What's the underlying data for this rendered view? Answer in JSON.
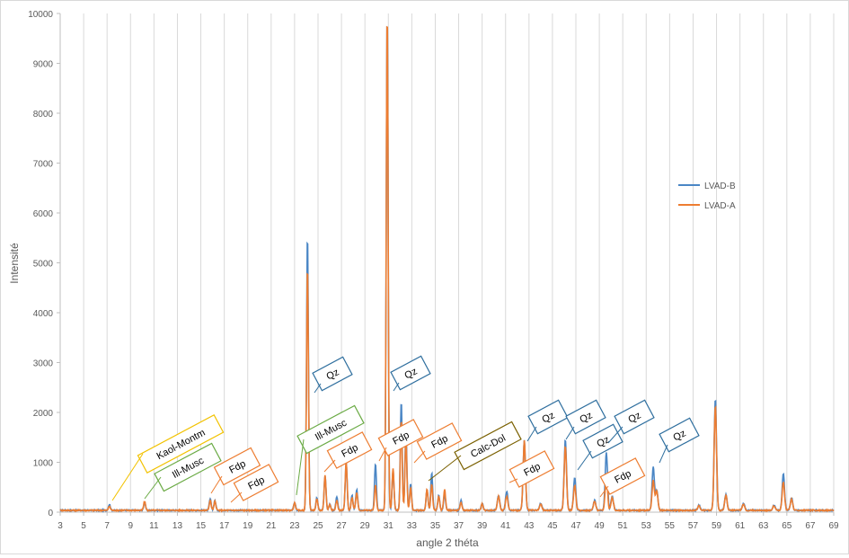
{
  "chart_data": {
    "type": "line",
    "title": "",
    "xlabel": "angle 2 théta",
    "ylabel": "Intensité",
    "xlim": [
      3,
      69
    ],
    "ylim": [
      0,
      10000
    ],
    "x_ticks": [
      3,
      5,
      7,
      9,
      11,
      13,
      15,
      17,
      19,
      21,
      23,
      25,
      27,
      29,
      31,
      33,
      35,
      37,
      39,
      41,
      43,
      45,
      47,
      49,
      51,
      53,
      55,
      57,
      59,
      61,
      63,
      65,
      67,
      69
    ],
    "y_ticks": [
      0,
      1000,
      2000,
      3000,
      4000,
      5000,
      6000,
      7000,
      8000,
      9000,
      10000
    ],
    "grid": "vertical",
    "legend_position": "right",
    "series": [
      {
        "name": "LVAD-B",
        "color": "#4a86c5",
        "peaks": [
          [
            7.2,
            120
          ],
          [
            10.2,
            150
          ],
          [
            15.8,
            230
          ],
          [
            16.2,
            200
          ],
          [
            23.0,
            150
          ],
          [
            24.1,
            5520
          ],
          [
            24.9,
            250
          ],
          [
            25.6,
            700
          ],
          [
            26.0,
            120
          ],
          [
            26.6,
            280
          ],
          [
            27.4,
            960
          ],
          [
            27.9,
            300
          ],
          [
            28.3,
            420
          ],
          [
            29.9,
            930
          ],
          [
            30.9,
            10000
          ],
          [
            31.4,
            800
          ],
          [
            32.1,
            2170
          ],
          [
            32.5,
            1650
          ],
          [
            32.9,
            520
          ],
          [
            34.3,
            420
          ],
          [
            34.7,
            750
          ],
          [
            35.3,
            300
          ],
          [
            35.8,
            330
          ],
          [
            37.2,
            200
          ],
          [
            39.0,
            140
          ],
          [
            40.4,
            300
          ],
          [
            41.1,
            380
          ],
          [
            42.6,
            1400
          ],
          [
            44.0,
            140
          ],
          [
            46.1,
            1420
          ],
          [
            46.9,
            650
          ],
          [
            48.6,
            200
          ],
          [
            49.6,
            1160
          ],
          [
            50.1,
            280
          ],
          [
            53.6,
            870
          ],
          [
            53.9,
            400
          ],
          [
            57.5,
            100
          ],
          [
            58.9,
            2230
          ],
          [
            59.8,
            320
          ],
          [
            61.3,
            140
          ],
          [
            63.9,
            100
          ],
          [
            64.7,
            730
          ],
          [
            65.4,
            250
          ]
        ]
      },
      {
        "name": "LVAD-A",
        "color": "#ed7d31",
        "peaks": [
          [
            7.2,
            80
          ],
          [
            10.2,
            180
          ],
          [
            15.8,
            200
          ],
          [
            16.2,
            180
          ],
          [
            23.0,
            150
          ],
          [
            24.1,
            4880
          ],
          [
            24.9,
            220
          ],
          [
            25.6,
            700
          ],
          [
            26.0,
            120
          ],
          [
            26.6,
            200
          ],
          [
            27.4,
            980
          ],
          [
            27.9,
            260
          ],
          [
            28.3,
            360
          ],
          [
            29.9,
            500
          ],
          [
            30.9,
            10000
          ],
          [
            31.4,
            850
          ],
          [
            32.1,
            1800
          ],
          [
            32.5,
            1450
          ],
          [
            32.9,
            450
          ],
          [
            34.3,
            430
          ],
          [
            34.7,
            520
          ],
          [
            35.3,
            280
          ],
          [
            35.8,
            420
          ],
          [
            37.2,
            160
          ],
          [
            39.0,
            130
          ],
          [
            40.4,
            280
          ],
          [
            41.1,
            280
          ],
          [
            42.6,
            1390
          ],
          [
            44.0,
            120
          ],
          [
            46.1,
            1290
          ],
          [
            46.9,
            500
          ],
          [
            48.6,
            180
          ],
          [
            49.6,
            700
          ],
          [
            50.1,
            260
          ],
          [
            53.6,
            600
          ],
          [
            53.9,
            380
          ],
          [
            57.5,
            90
          ],
          [
            58.9,
            2100
          ],
          [
            59.8,
            300
          ],
          [
            61.3,
            120
          ],
          [
            63.9,
            90
          ],
          [
            64.7,
            560
          ],
          [
            65.4,
            230
          ]
        ]
      }
    ],
    "annotations": [
      {
        "text": "Kaol-Montm",
        "color": "#f2c200",
        "at": [
          7.3,
          200
        ]
      },
      {
        "text": "Ill-Musc",
        "color": "#6aaa44",
        "at": [
          10.1,
          250
        ]
      },
      {
        "text": "Fdp",
        "color": "#ed7d31",
        "at": [
          16.2,
          400
        ]
      },
      {
        "text": "Fdp",
        "color": "#ed7d31",
        "at": [
          17.2,
          200
        ]
      },
      {
        "text": "Ill-Musc",
        "color": "#6aaa44",
        "at": [
          23.2,
          300
        ]
      },
      {
        "text": "Qz",
        "color": "#2e6e9e",
        "at": [
          24.7,
          2400
        ]
      },
      {
        "text": "Fdp",
        "color": "#ed7d31",
        "at": [
          25.5,
          900
        ]
      },
      {
        "text": "Qz",
        "color": "#2e6e9e",
        "at": [
          31.3,
          2450
        ]
      },
      {
        "text": "Fdp",
        "color": "#ed7d31",
        "at": [
          30.0,
          1000
        ]
      },
      {
        "text": "Fdp",
        "color": "#ed7d31",
        "at": [
          33.0,
          700
        ]
      },
      {
        "text": "Calc-Dol",
        "color": "#7a6000",
        "at": [
          34.6,
          500
        ]
      },
      {
        "text": "Fdp",
        "color": "#ed7d31",
        "at": [
          41.4,
          700
        ]
      },
      {
        "text": "Qz",
        "color": "#2e6e9e",
        "at": [
          42.8,
          1500
        ]
      },
      {
        "text": "Qz",
        "color": "#2e6e9e",
        "at": [
          46.1,
          1500
        ]
      },
      {
        "text": "Qz",
        "color": "#2e6e9e",
        "at": [
          47.1,
          800
        ]
      },
      {
        "text": "Fdp",
        "color": "#ed7d31",
        "at": [
          48.4,
          800
        ]
      },
      {
        "text": "Qz",
        "color": "#2e6e9e",
        "at": [
          49.8,
          1300
        ]
      },
      {
        "text": "Qz",
        "color": "#2e6e9e",
        "at": [
          53.9,
          1000
        ]
      }
    ]
  }
}
